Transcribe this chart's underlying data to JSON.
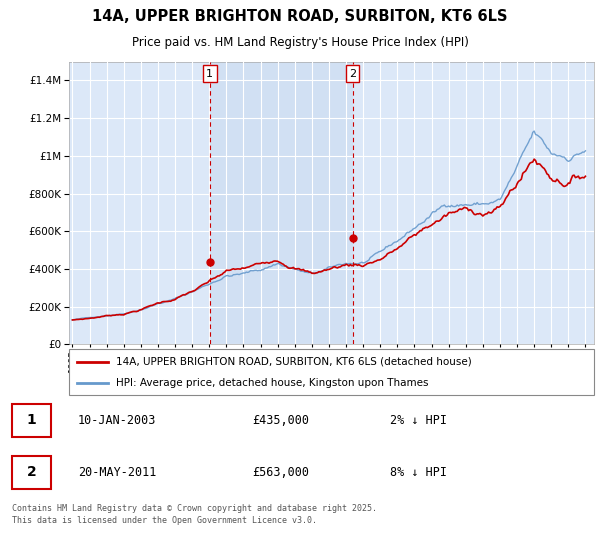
{
  "title_line1": "14A, UPPER BRIGHTON ROAD, SURBITON, KT6 6LS",
  "title_line2": "Price paid vs. HM Land Registry's House Price Index (HPI)",
  "legend_label_red": "14A, UPPER BRIGHTON ROAD, SURBITON, KT6 6LS (detached house)",
  "legend_label_blue": "HPI: Average price, detached house, Kingston upon Thames",
  "footer": "Contains HM Land Registry data © Crown copyright and database right 2025.\nThis data is licensed under the Open Government Licence v3.0.",
  "annotation1_date": "10-JAN-2003",
  "annotation1_price": "£435,000",
  "annotation1_hpi": "2% ↓ HPI",
  "annotation2_date": "20-MAY-2011",
  "annotation2_price": "£563,000",
  "annotation2_hpi": "8% ↓ HPI",
  "sale1_x": 2003.03,
  "sale1_y": 435000,
  "sale2_x": 2011.38,
  "sale2_y": 563000,
  "vline1_x": 2003.03,
  "vline2_x": 2011.38,
  "ylim": [
    0,
    1500000
  ],
  "xlim": [
    1994.8,
    2025.5
  ],
  "plot_bg_color": "#dce8f8",
  "shaded_bg_color": "#dce8f8",
  "red_color": "#cc0000",
  "blue_color": "#6699cc",
  "vline_color": "#cc0000",
  "grid_color": "#ffffff"
}
